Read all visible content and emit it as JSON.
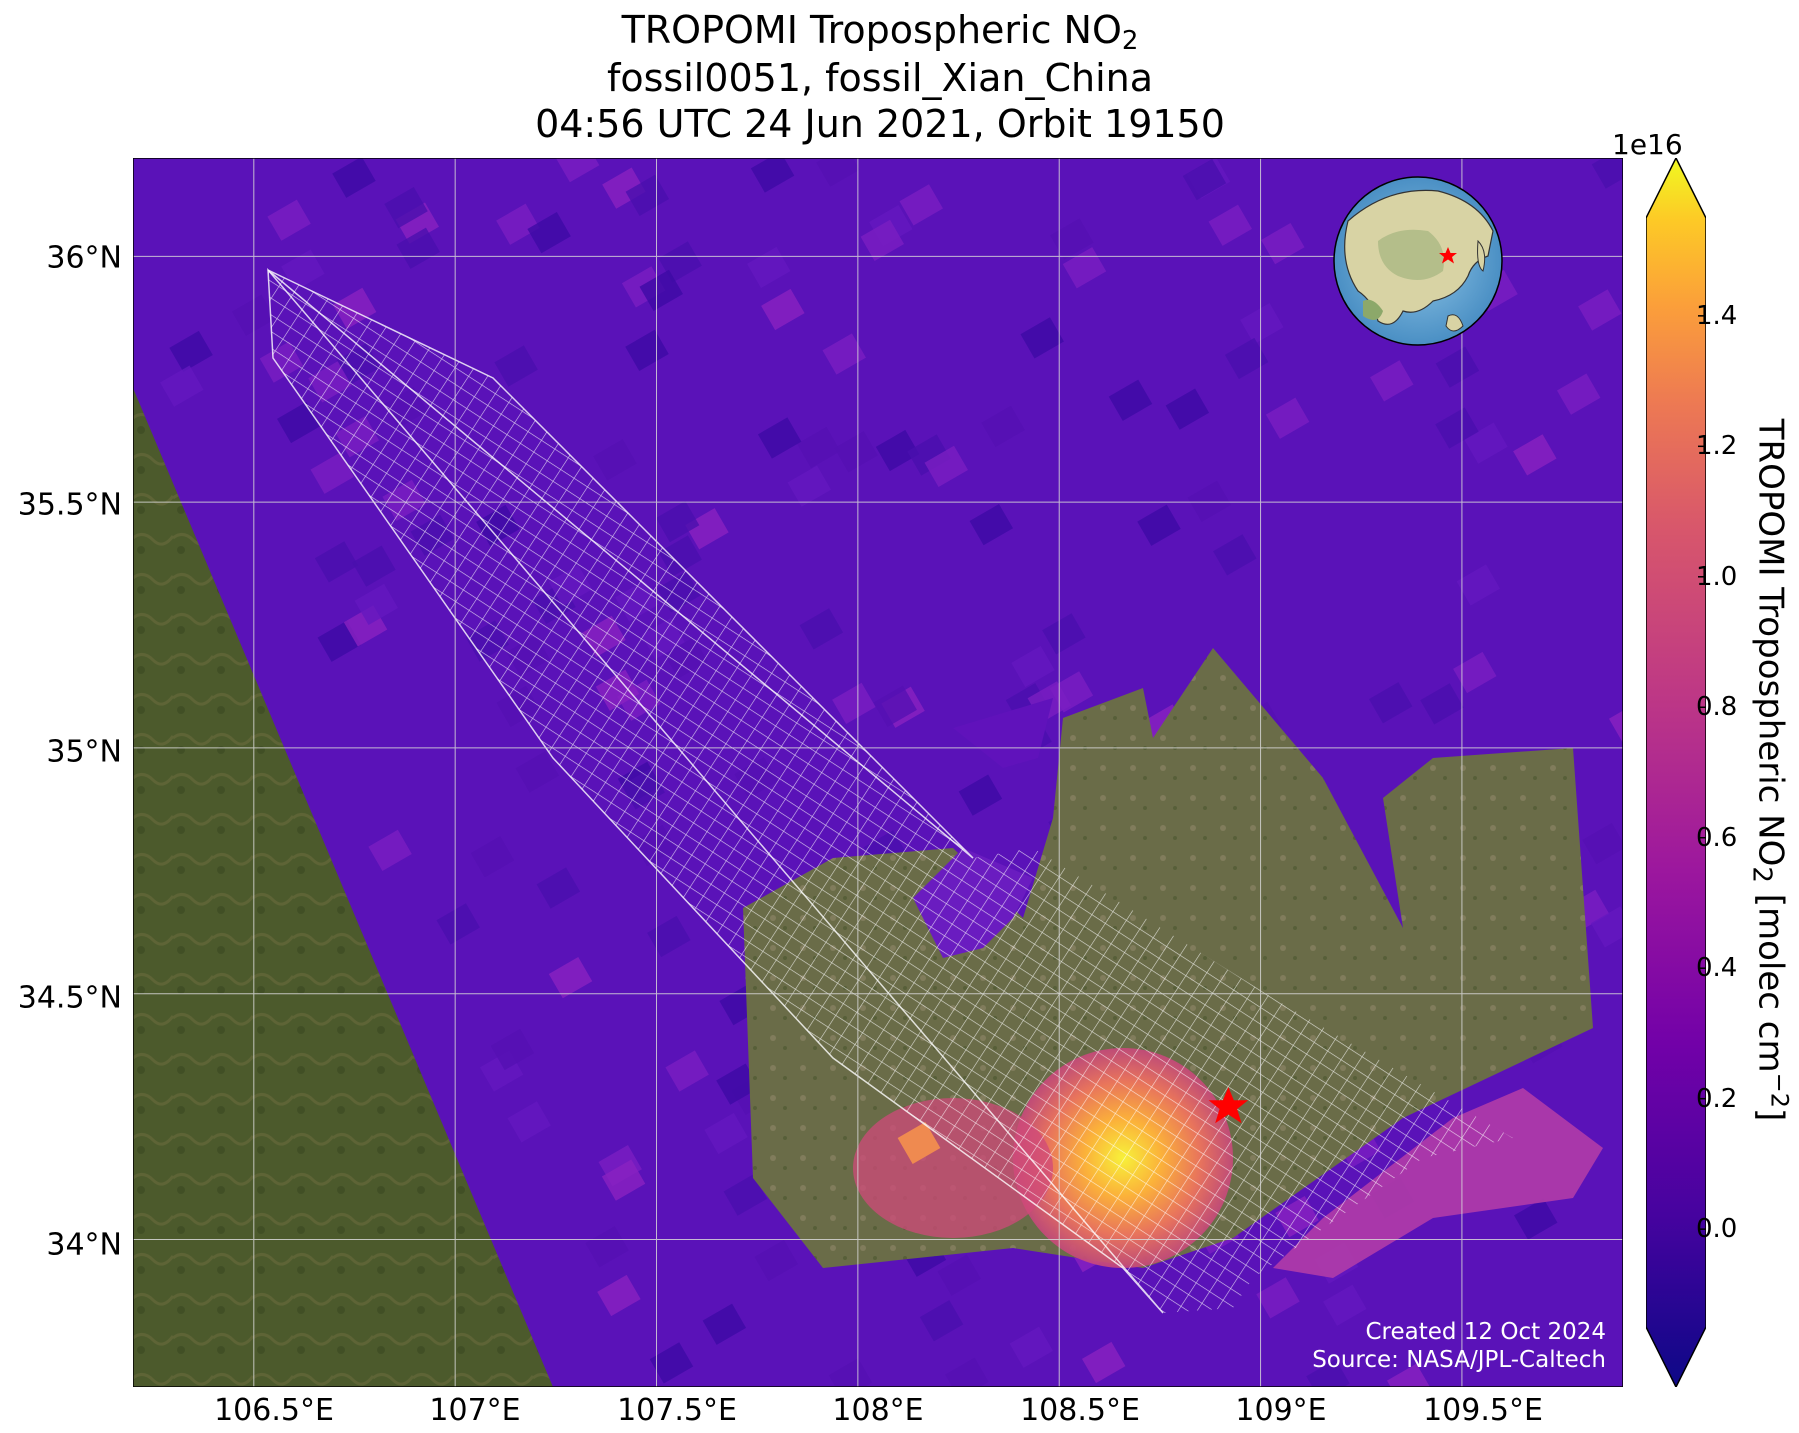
{
  "title": {
    "line1_prefix": "TROPOMI Tropospheric NO",
    "line1_sub": "2",
    "line2": "fossil0051, fossil_Xian_China",
    "line3": "04:56 UTC 24 Jun 2021, Orbit 19150"
  },
  "map": {
    "lon_ticks": [
      "106.5°E",
      "107°E",
      "107.5°E",
      "108°E",
      "108.5°E",
      "109°E",
      "109.5°E"
    ],
    "lat_ticks": [
      "36°N",
      "35.5°N",
      "35°N",
      "34.5°N",
      "34°N"
    ],
    "lon_range": [
      106.2,
      109.9
    ],
    "lat_range": [
      33.7,
      36.2
    ],
    "target_marker": {
      "lon": 108.92,
      "lat": 34.27,
      "symbol": "red-star"
    },
    "inset_globe": {
      "marker": "red-star"
    }
  },
  "credit": {
    "created": "Created 12 Oct 2024",
    "source": "Source: NASA/JPL-Caltech"
  },
  "colorbar": {
    "multiplier": "1e16",
    "label_prefix": "TROPOMI Tropospheric NO",
    "label_sub": "2",
    "label_mid": " [molec cm",
    "label_sup": "−2",
    "label_suffix": "]",
    "ticks": [
      "0.0",
      "0.2",
      "0.4",
      "0.6",
      "0.8",
      "1.0",
      "1.2",
      "1.4"
    ],
    "range": [
      -0.15,
      1.55
    ],
    "colormap": "plasma"
  },
  "colors": {
    "background_no2": "#5a12b8",
    "terrain": "#4c5a2c",
    "grid": "#dddddd",
    "marker": "#ff0000"
  }
}
